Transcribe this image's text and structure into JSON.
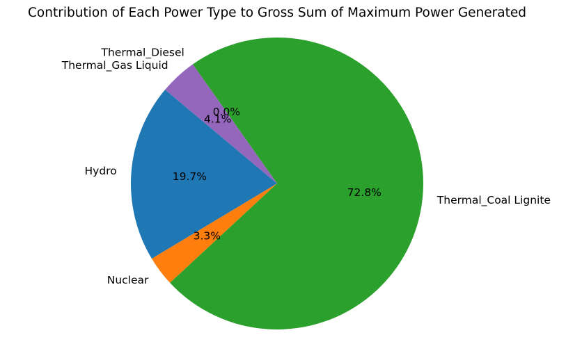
{
  "chart_data": {
    "type": "pie",
    "title": "Contribution of Each Power Type to Gross Sum of Maximum Power Generated",
    "categories": [
      "Hydro",
      "Nuclear",
      "Thermal_Coal Lignite",
      "Thermal_Diesel",
      "Thermal_Gas Liquid"
    ],
    "values": [
      19.7,
      3.3,
      72.8,
      0.0,
      4.1
    ],
    "value_labels": [
      "19.7%",
      "3.3%",
      "72.8%",
      "0.0%",
      "4.1%"
    ],
    "colors": [
      "#1f77b4",
      "#ff7f0e",
      "#2ca02c",
      "#d62728",
      "#9467bd"
    ],
    "start_angle_deg": 140,
    "direction": "counterclockwise",
    "legend": false
  }
}
